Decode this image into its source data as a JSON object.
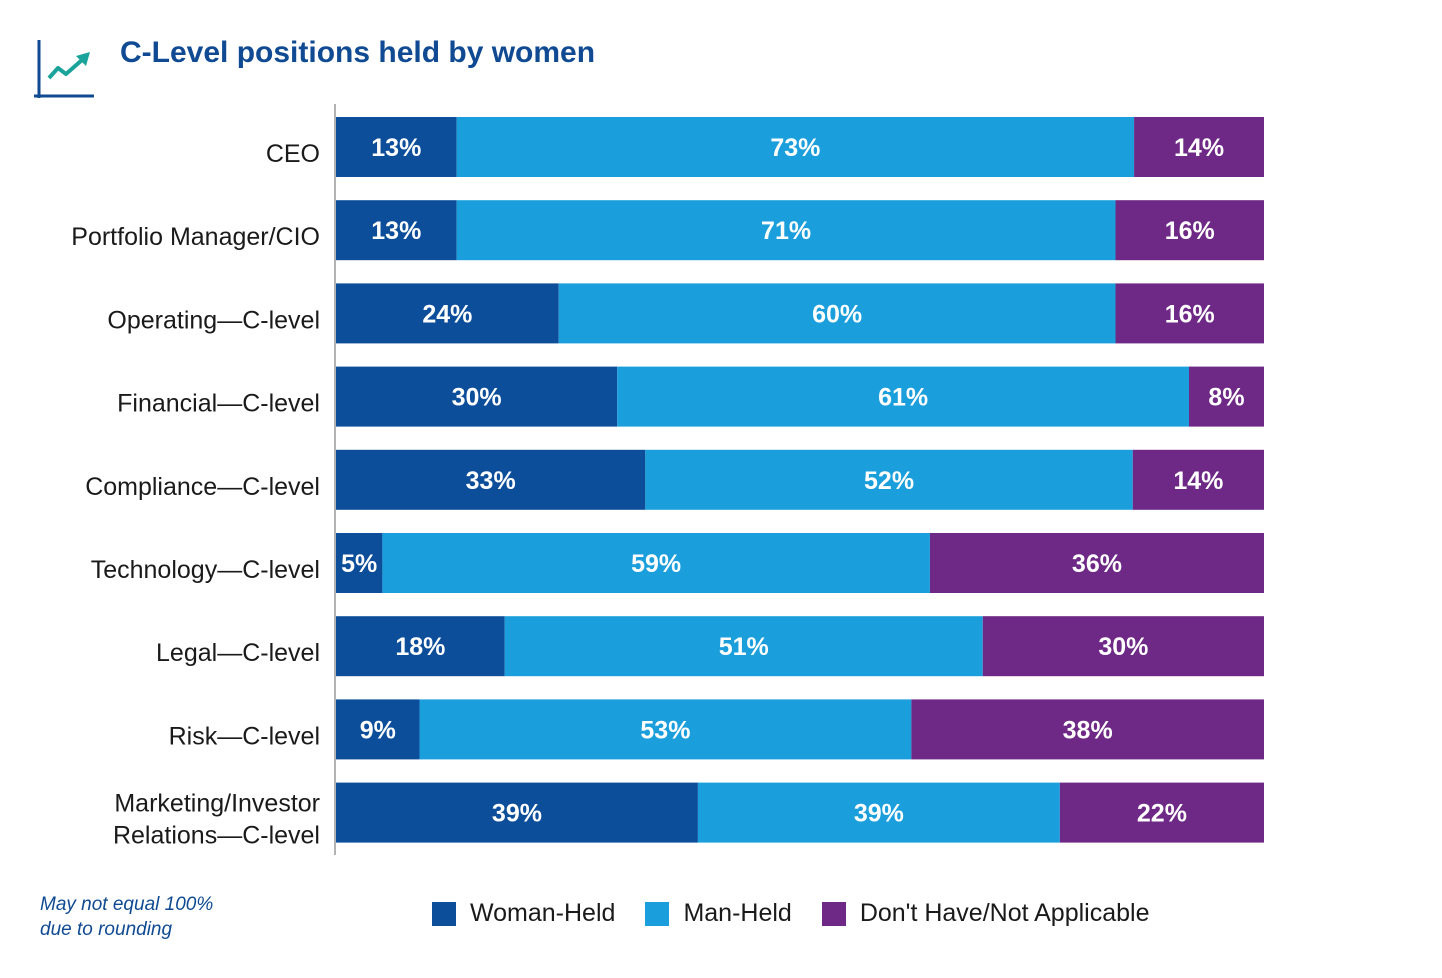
{
  "title": "C-Level positions held by women",
  "icon": "line-chart-icon",
  "note": {
    "line1": "May not equal 100%",
    "line2": "due to rounding"
  },
  "colors": {
    "woman": "#0d4e9a",
    "man": "#1b9fdc",
    "na": "#6e2885",
    "title": "#0f4a92",
    "icon": "#1aa39a"
  },
  "legend": [
    "Woman-Held",
    "Man-Held",
    "Don't Have/Not Applicable"
  ],
  "chart_data": {
    "type": "bar",
    "orientation": "horizontal",
    "stacked": true,
    "title": "C-Level positions held by women",
    "categories": [
      [
        "CEO"
      ],
      [
        "Portfolio Manager/CIO"
      ],
      [
        "Operating—C-level"
      ],
      [
        "Financial—C-level"
      ],
      [
        "Compliance—C-level"
      ],
      [
        "Technology—C-level"
      ],
      [
        "Legal—C-level"
      ],
      [
        "Risk—C-level"
      ],
      [
        "Marketing/Investor",
        "Relations—C-level"
      ]
    ],
    "series": [
      {
        "name": "Woman-Held",
        "values": [
          13,
          13,
          24,
          30,
          33,
          5,
          18,
          9,
          39
        ]
      },
      {
        "name": "Man-Held",
        "values": [
          73,
          71,
          60,
          61,
          52,
          59,
          51,
          53,
          39
        ]
      },
      {
        "name": "Don't Have/Not Applicable",
        "values": [
          14,
          16,
          16,
          8,
          14,
          36,
          30,
          38,
          22
        ]
      }
    ],
    "unit": "%",
    "legend_position": "bottom",
    "grid": false
  }
}
